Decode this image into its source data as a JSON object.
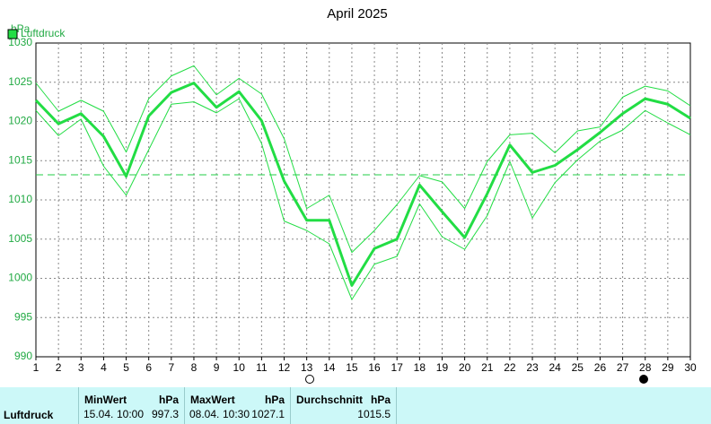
{
  "chart_data": {
    "type": "line",
    "title": "April 2025",
    "y_label": "hPa",
    "x": [
      1,
      2,
      3,
      4,
      5,
      6,
      7,
      8,
      9,
      10,
      11,
      12,
      13,
      14,
      15,
      16,
      17,
      18,
      19,
      20,
      21,
      22,
      23,
      24,
      25,
      26,
      27,
      28,
      29,
      30
    ],
    "xlim": [
      1,
      30
    ],
    "xticks": [
      1,
      2,
      3,
      4,
      5,
      6,
      7,
      8,
      9,
      10,
      11,
      12,
      13,
      14,
      15,
      16,
      17,
      18,
      19,
      20,
      21,
      22,
      23,
      24,
      25,
      26,
      27,
      28,
      29,
      30
    ],
    "ylim": [
      990,
      1030
    ],
    "yticks": [
      990,
      995,
      1000,
      1005,
      1010,
      1015,
      1020,
      1025,
      1030
    ],
    "grid": true,
    "series": [
      {
        "name": "Luftdruck",
        "color": "#22dd44",
        "width": 3,
        "values": [
          1022.7,
          1019.7,
          1021.0,
          1018.1,
          1013.0,
          1020.7,
          1023.7,
          1024.9,
          1021.8,
          1023.8,
          1020.1,
          1012.4,
          1007.4,
          1007.4,
          999.1,
          1003.8,
          1005.0,
          1011.9,
          1008.5,
          1005.2,
          1010.8,
          1017.0,
          1013.5,
          1014.4,
          1016.4,
          1018.6,
          1021.0,
          1022.9,
          1022.2,
          1020.4
        ]
      },
      {
        "color": "#22dd44",
        "width": 1,
        "values": [
          1024.9,
          1021.3,
          1022.7,
          1021.3,
          1016.1,
          1022.9,
          1025.8,
          1027.1,
          1023.4,
          1025.5,
          1023.5,
          1017.8,
          1008.9,
          1010.6,
          1003.3,
          1006.1,
          1009.4,
          1013.1,
          1012.3,
          1008.9,
          1014.9,
          1018.3,
          1018.5,
          1016.0,
          1018.8,
          1019.3,
          1023.1,
          1024.5,
          1023.9,
          1022.0
        ]
      },
      {
        "color": "#22dd44",
        "width": 1,
        "values": [
          1021.4,
          1018.2,
          1020.3,
          1014.3,
          1010.6,
          1016.4,
          1022.2,
          1022.5,
          1021.1,
          1022.9,
          1017.2,
          1007.3,
          1006.1,
          1004.4,
          997.3,
          1001.8,
          1002.8,
          1009.5,
          1005.3,
          1003.7,
          1008.0,
          1014.9,
          1007.7,
          1012.2,
          1015.1,
          1017.5,
          1018.9,
          1021.4,
          1019.8,
          1018.3
        ]
      }
    ],
    "average_line": 1013.2
  },
  "summary": {
    "row_label": "Luftdruck",
    "min": {
      "header": "MinWert",
      "unit": "hPa",
      "date": "15.04.",
      "time": "10:00",
      "value": 997.3
    },
    "max": {
      "header": "MaxWert",
      "unit": "hPa",
      "date": "08.04.",
      "time": "10:30",
      "value": 1027.1
    },
    "avg": {
      "header": "Durchschnitt",
      "unit": "hPa",
      "value": 1015.5
    }
  }
}
